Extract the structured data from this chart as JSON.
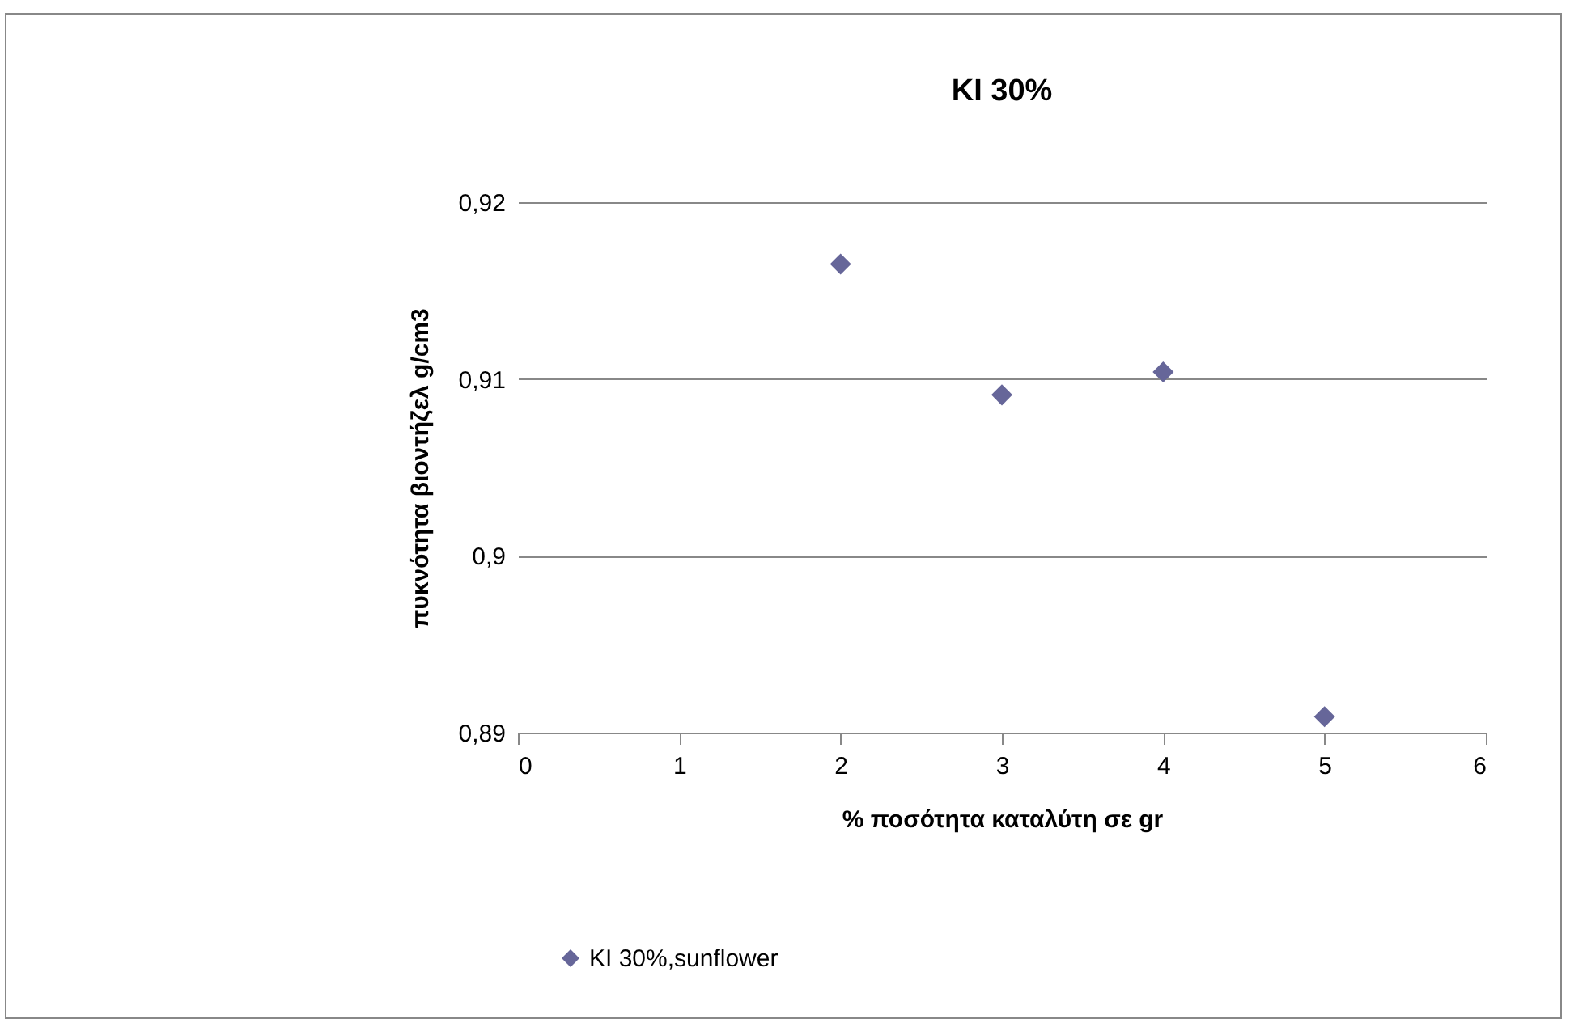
{
  "chart_data": {
    "type": "scatter",
    "title": "KI 30%",
    "xlabel": "% ποσότητα καταλύτη σε gr",
    "ylabel": "πυκνότητα βιοντήζελ g/cm3",
    "x": [
      2,
      3,
      4,
      5
    ],
    "series": [
      {
        "name": "KI 30%,sunflower",
        "color": "#666699",
        "values": [
          0.9165,
          0.9091,
          0.9104,
          0.8909
        ]
      }
    ],
    "xlim": [
      0,
      6
    ],
    "xticks": [
      0,
      1,
      2,
      3,
      4,
      5,
      6
    ],
    "ylim": [
      0.89,
      0.92
    ],
    "yticks": [
      {
        "value": 0.89,
        "label": "0,89"
      },
      {
        "value": 0.9,
        "label": "0,9"
      },
      {
        "value": 0.91,
        "label": "0,91"
      },
      {
        "value": 0.92,
        "label": "0,92"
      }
    ],
    "grid": "y",
    "legend": "bottom",
    "marker": "diamond"
  }
}
